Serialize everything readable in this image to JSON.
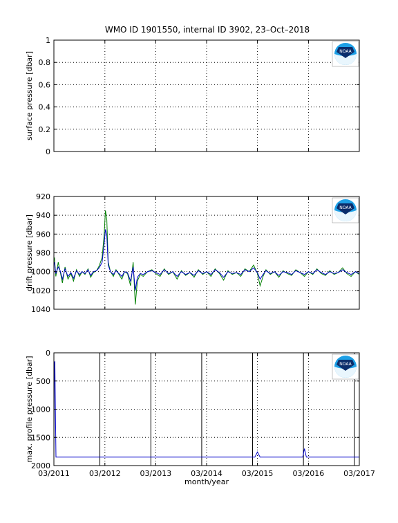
{
  "figure": {
    "title": "WMO ID 1901550, internal ID 3902, 23–Oct–2018",
    "logo_text": "NOAA"
  },
  "chart_data": [
    {
      "type": "line",
      "title": "WMO ID 1901550, internal ID 3902, 23–Oct–2018",
      "ylabel": "surface pressure [dbar]",
      "xlabel": "",
      "xlim": [
        "2011-03-01",
        "2017-03-01"
      ],
      "ylim": [
        0,
        1
      ],
      "y_reversed": false,
      "yticks": [
        0,
        0.2,
        0.4,
        0.6,
        0.8,
        1
      ],
      "ytick_labels": [
        "0",
        "0.2",
        "0.4",
        "0.6",
        "0.8",
        "1"
      ],
      "xticks": [
        "2011-03-01",
        "2012-03-01",
        "2013-03-01",
        "2014-03-01",
        "2015-03-01",
        "2016-03-01",
        "2017-03-01"
      ],
      "grid": true,
      "series": []
    },
    {
      "type": "line",
      "ylabel": "drift pressure [dbar]",
      "xlabel": "",
      "xlim": [
        "2011-03-01",
        "2017-03-01"
      ],
      "ylim": [
        920,
        1040
      ],
      "y_reversed": true,
      "yticks": [
        920,
        940,
        960,
        980,
        1000,
        1020,
        1040
      ],
      "ytick_labels": [
        "920",
        "940",
        "960",
        "980",
        "1000",
        "1020",
        "1040"
      ],
      "xticks": [
        "2011-03-01",
        "2012-03-01",
        "2013-03-01",
        "2014-03-01",
        "2015-03-01",
        "2016-03-01",
        "2017-03-01"
      ],
      "grid": true,
      "series": [
        {
          "color": "#008000",
          "x": [
            "2011-03-05",
            "2011-03-15",
            "2011-04-01",
            "2011-04-15",
            "2011-05-01",
            "2011-05-20",
            "2011-06-10",
            "2011-07-01",
            "2011-07-20",
            "2011-08-10",
            "2011-09-01",
            "2011-09-20",
            "2011-10-10",
            "2011-11-01",
            "2011-11-20",
            "2011-12-10",
            "2012-01-01",
            "2012-01-20",
            "2012-02-10",
            "2012-02-25",
            "2012-03-05",
            "2012-03-15",
            "2012-03-25",
            "2012-04-10",
            "2012-05-01",
            "2012-05-20",
            "2012-06-10",
            "2012-07-01",
            "2012-07-20",
            "2012-08-10",
            "2012-09-01",
            "2012-09-20",
            "2012-10-05",
            "2012-10-20",
            "2012-11-10",
            "2012-12-01",
            "2013-01-01",
            "2013-02-01",
            "2013-03-01",
            "2013-04-01",
            "2013-05-01",
            "2013-06-01",
            "2013-07-01",
            "2013-08-01",
            "2013-09-01",
            "2013-10-01",
            "2013-11-01",
            "2013-12-01",
            "2014-01-01",
            "2014-02-01",
            "2014-03-01",
            "2014-04-01",
            "2014-05-01",
            "2014-06-01",
            "2014-07-01",
            "2014-08-01",
            "2014-09-01",
            "2014-10-01",
            "2014-11-01",
            "2014-12-01",
            "2015-01-01",
            "2015-02-01",
            "2015-03-01",
            "2015-03-20",
            "2015-04-10",
            "2015-05-01",
            "2015-06-01",
            "2015-07-01",
            "2015-08-01",
            "2015-09-01",
            "2015-10-01",
            "2015-11-01",
            "2015-12-01",
            "2016-01-01",
            "2016-02-01",
            "2016-03-01",
            "2016-04-01",
            "2016-05-01",
            "2016-06-01",
            "2016-07-01",
            "2016-08-01",
            "2016-09-01",
            "2016-10-01",
            "2016-11-01",
            "2016-12-01",
            "2017-01-01",
            "2017-02-01",
            "2017-03-01"
          ],
          "y": [
            985,
            1005,
            990,
            1000,
            1012,
            995,
            1008,
            1002,
            1010,
            998,
            1005,
            1000,
            1003,
            997,
            1006,
            1001,
            999,
            994,
            985,
            960,
            935,
            945,
            990,
            1000,
            1005,
            998,
            1003,
            1008,
            1000,
            1002,
            1015,
            990,
            1035,
            1010,
            1003,
            1005,
            1000,
            998,
            1002,
            1005,
            997,
            1003,
            1000,
            1008,
            999,
            1004,
            1001,
            1006,
            998,
            1003,
            1000,
            1005,
            997,
            1002,
            1009,
            999,
            1003,
            1001,
            1005,
            997,
            1000,
            993,
            1002,
            1015,
            1005,
            998,
            1003,
            1000,
            1006,
            999,
            1002,
            1004,
            998,
            1001,
            1005,
            1000,
            1003,
            997,
            1002,
            1004,
            999,
            1003,
            1001,
            996,
            1002,
            1005,
            1000,
            1003
          ]
        },
        {
          "color": "#0000cc",
          "x": [
            "2011-03-05",
            "2011-03-15",
            "2011-04-01",
            "2011-04-15",
            "2011-05-01",
            "2011-05-20",
            "2011-06-10",
            "2011-07-01",
            "2011-07-20",
            "2011-08-10",
            "2011-09-01",
            "2011-09-20",
            "2011-10-10",
            "2011-11-01",
            "2011-11-20",
            "2011-12-10",
            "2012-01-01",
            "2012-01-20",
            "2012-02-10",
            "2012-02-25",
            "2012-03-05",
            "2012-03-15",
            "2012-03-25",
            "2012-04-10",
            "2012-05-01",
            "2012-05-20",
            "2012-06-10",
            "2012-07-01",
            "2012-07-20",
            "2012-08-10",
            "2012-09-01",
            "2012-09-20",
            "2012-10-05",
            "2012-10-20",
            "2012-11-10",
            "2012-12-01",
            "2013-01-01",
            "2013-02-01",
            "2013-03-01",
            "2013-04-01",
            "2013-05-01",
            "2013-06-01",
            "2013-07-01",
            "2013-08-01",
            "2013-09-01",
            "2013-10-01",
            "2013-11-01",
            "2013-12-01",
            "2014-01-01",
            "2014-02-01",
            "2014-03-01",
            "2014-04-01",
            "2014-05-01",
            "2014-06-01",
            "2014-07-01",
            "2014-08-01",
            "2014-09-01",
            "2014-10-01",
            "2014-11-01",
            "2014-12-01",
            "2015-01-01",
            "2015-02-01",
            "2015-03-01",
            "2015-03-20",
            "2015-04-10",
            "2015-05-01",
            "2015-06-01",
            "2015-07-01",
            "2015-08-01",
            "2015-09-01",
            "2015-10-01",
            "2015-11-01",
            "2015-12-01",
            "2016-01-01",
            "2016-02-01",
            "2016-03-01",
            "2016-04-01",
            "2016-05-01",
            "2016-06-01",
            "2016-07-01",
            "2016-08-01",
            "2016-09-01",
            "2016-10-01",
            "2016-11-01",
            "2016-12-01",
            "2017-01-01",
            "2017-02-01",
            "2017-03-01"
          ],
          "y": [
            990,
            1002,
            995,
            999,
            1008,
            997,
            1005,
            1001,
            1007,
            999,
            1003,
            1000,
            1002,
            998,
            1004,
            1000,
            999,
            996,
            990,
            970,
            955,
            962,
            993,
            1000,
            1003,
            999,
            1002,
            1005,
            1000,
            1001,
            1010,
            995,
            1020,
            1006,
            1002,
            1003,
            1000,
            999,
            1001,
            1003,
            998,
            1002,
            1000,
            1005,
            1000,
            1003,
            1001,
            1004,
            999,
            1002,
            1000,
            1003,
            998,
            1001,
            1006,
            1000,
            1002,
            1001,
            1003,
            998,
            1000,
            996,
            1001,
            1008,
            1003,
            999,
            1002,
            1000,
            1004,
            1000,
            1001,
            1003,
            999,
            1001,
            1003,
            1000,
            1002,
            998,
            1001,
            1003,
            1000,
            1002,
            1001,
            998,
            1001,
            1003,
            1000,
            1002
          ]
        }
      ]
    },
    {
      "type": "line",
      "ylabel": "max. profile pressure [dbar]",
      "xlabel": "month/year",
      "xlim": [
        "2011-03-01",
        "2017-03-01"
      ],
      "ylim": [
        0,
        2000
      ],
      "y_reversed": true,
      "yticks": [
        0,
        500,
        1000,
        1500,
        2000
      ],
      "ytick_labels": [
        "0",
        "500",
        "1000",
        "1500",
        "2000"
      ],
      "xticks": [
        "2011-03-01",
        "2012-03-01",
        "2013-03-01",
        "2014-03-01",
        "2015-03-01",
        "2016-03-01",
        "2017-03-01"
      ],
      "xtick_labels": [
        "03/2011",
        "03/2012",
        "03/2013",
        "03/2014",
        "03/2015",
        "03/2016",
        "03/2017"
      ],
      "grid": true,
      "vertical_lines": [
        "2012-01-25",
        "2013-01-25",
        "2014-01-25",
        "2015-01-25",
        "2016-01-25",
        "2017-01-25"
      ],
      "series": [
        {
          "color": "#0000cc",
          "x": [
            "2011-03-01",
            "2011-03-04",
            "2011-03-08",
            "2011-03-12",
            "2011-03-16",
            "2011-03-22",
            "2011-04-10",
            "2012-06-01",
            "2013-06-01",
            "2014-06-01",
            "2015-01-01",
            "2015-02-10",
            "2015-03-01",
            "2015-03-20",
            "2015-05-01",
            "2015-12-01",
            "2016-01-20",
            "2016-02-01",
            "2016-02-15",
            "2016-03-01",
            "2016-06-01",
            "2016-12-01",
            "2017-01-20",
            "2017-03-01"
          ],
          "y": [
            1850,
            200,
            150,
            1000,
            1850,
            1850,
            1850,
            1850,
            1850,
            1850,
            1850,
            1850,
            1760,
            1850,
            1850,
            1850,
            1850,
            1700,
            1850,
            1850,
            1850,
            1850,
            1850,
            1850
          ]
        }
      ]
    }
  ]
}
